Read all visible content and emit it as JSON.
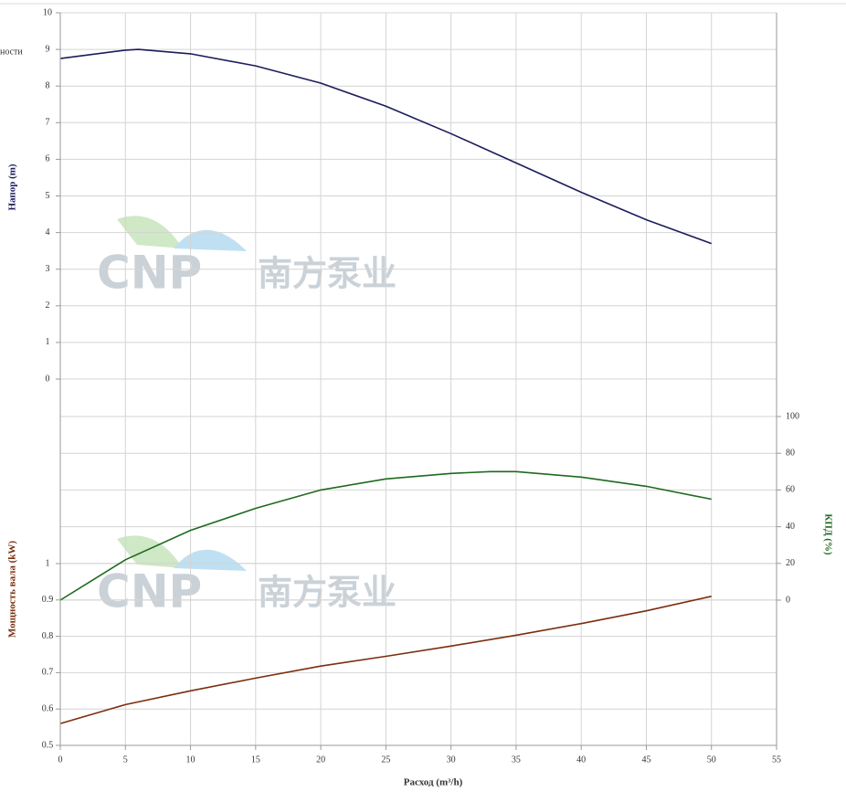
{
  "partial_label": "ности",
  "watermark": {
    "brand": "CNP",
    "name": "南方泵业"
  },
  "chart_data": [
    {
      "type": "line",
      "ylabel": "Напор (m)",
      "x": [
        0,
        5,
        6,
        10,
        15,
        20,
        25,
        30,
        35,
        40,
        45,
        50
      ],
      "series": [
        {
          "name": "Напор",
          "color": "#1c1c5c",
          "values": [
            8.75,
            8.98,
            9.0,
            8.88,
            8.55,
            8.08,
            7.45,
            6.7,
            5.9,
            5.1,
            4.35,
            3.7
          ]
        }
      ],
      "ylim": [
        0,
        10
      ],
      "yticks": [
        0,
        1,
        2,
        3,
        4,
        5,
        6,
        7,
        8,
        9,
        10
      ]
    },
    {
      "type": "line",
      "ylabel": "КПД (%)",
      "x": [
        0,
        5,
        10,
        15,
        20,
        25,
        30,
        33,
        35,
        40,
        45,
        50
      ],
      "series": [
        {
          "name": "КПД",
          "color": "#1e6a1e",
          "axis": "y2",
          "values": [
            0,
            22,
            38,
            50,
            60,
            66,
            69,
            70,
            70,
            67,
            62,
            55
          ]
        }
      ],
      "ylim": [
        0,
        100
      ],
      "yticks": [
        0,
        20,
        40,
        60,
        80,
        100
      ]
    },
    {
      "type": "line",
      "ylabel": "Мощность вала (kW)",
      "xlabel": "Расход (m³/h)",
      "x": [
        0,
        5,
        10,
        15,
        20,
        25,
        30,
        35,
        40,
        45,
        50
      ],
      "series": [
        {
          "name": "Мощность",
          "color": "#7a2e0e",
          "values": [
            0.56,
            0.612,
            0.65,
            0.685,
            0.718,
            0.745,
            0.773,
            0.803,
            0.835,
            0.87,
            0.91
          ]
        }
      ],
      "xlim": [
        0,
        55
      ],
      "xticks": [
        0,
        5,
        10,
        15,
        20,
        25,
        30,
        35,
        40,
        45,
        50,
        55
      ],
      "ylim": [
        0.5,
        1
      ],
      "yticks": [
        0.5,
        0.6,
        0.7,
        0.8,
        0.9,
        1
      ]
    }
  ]
}
